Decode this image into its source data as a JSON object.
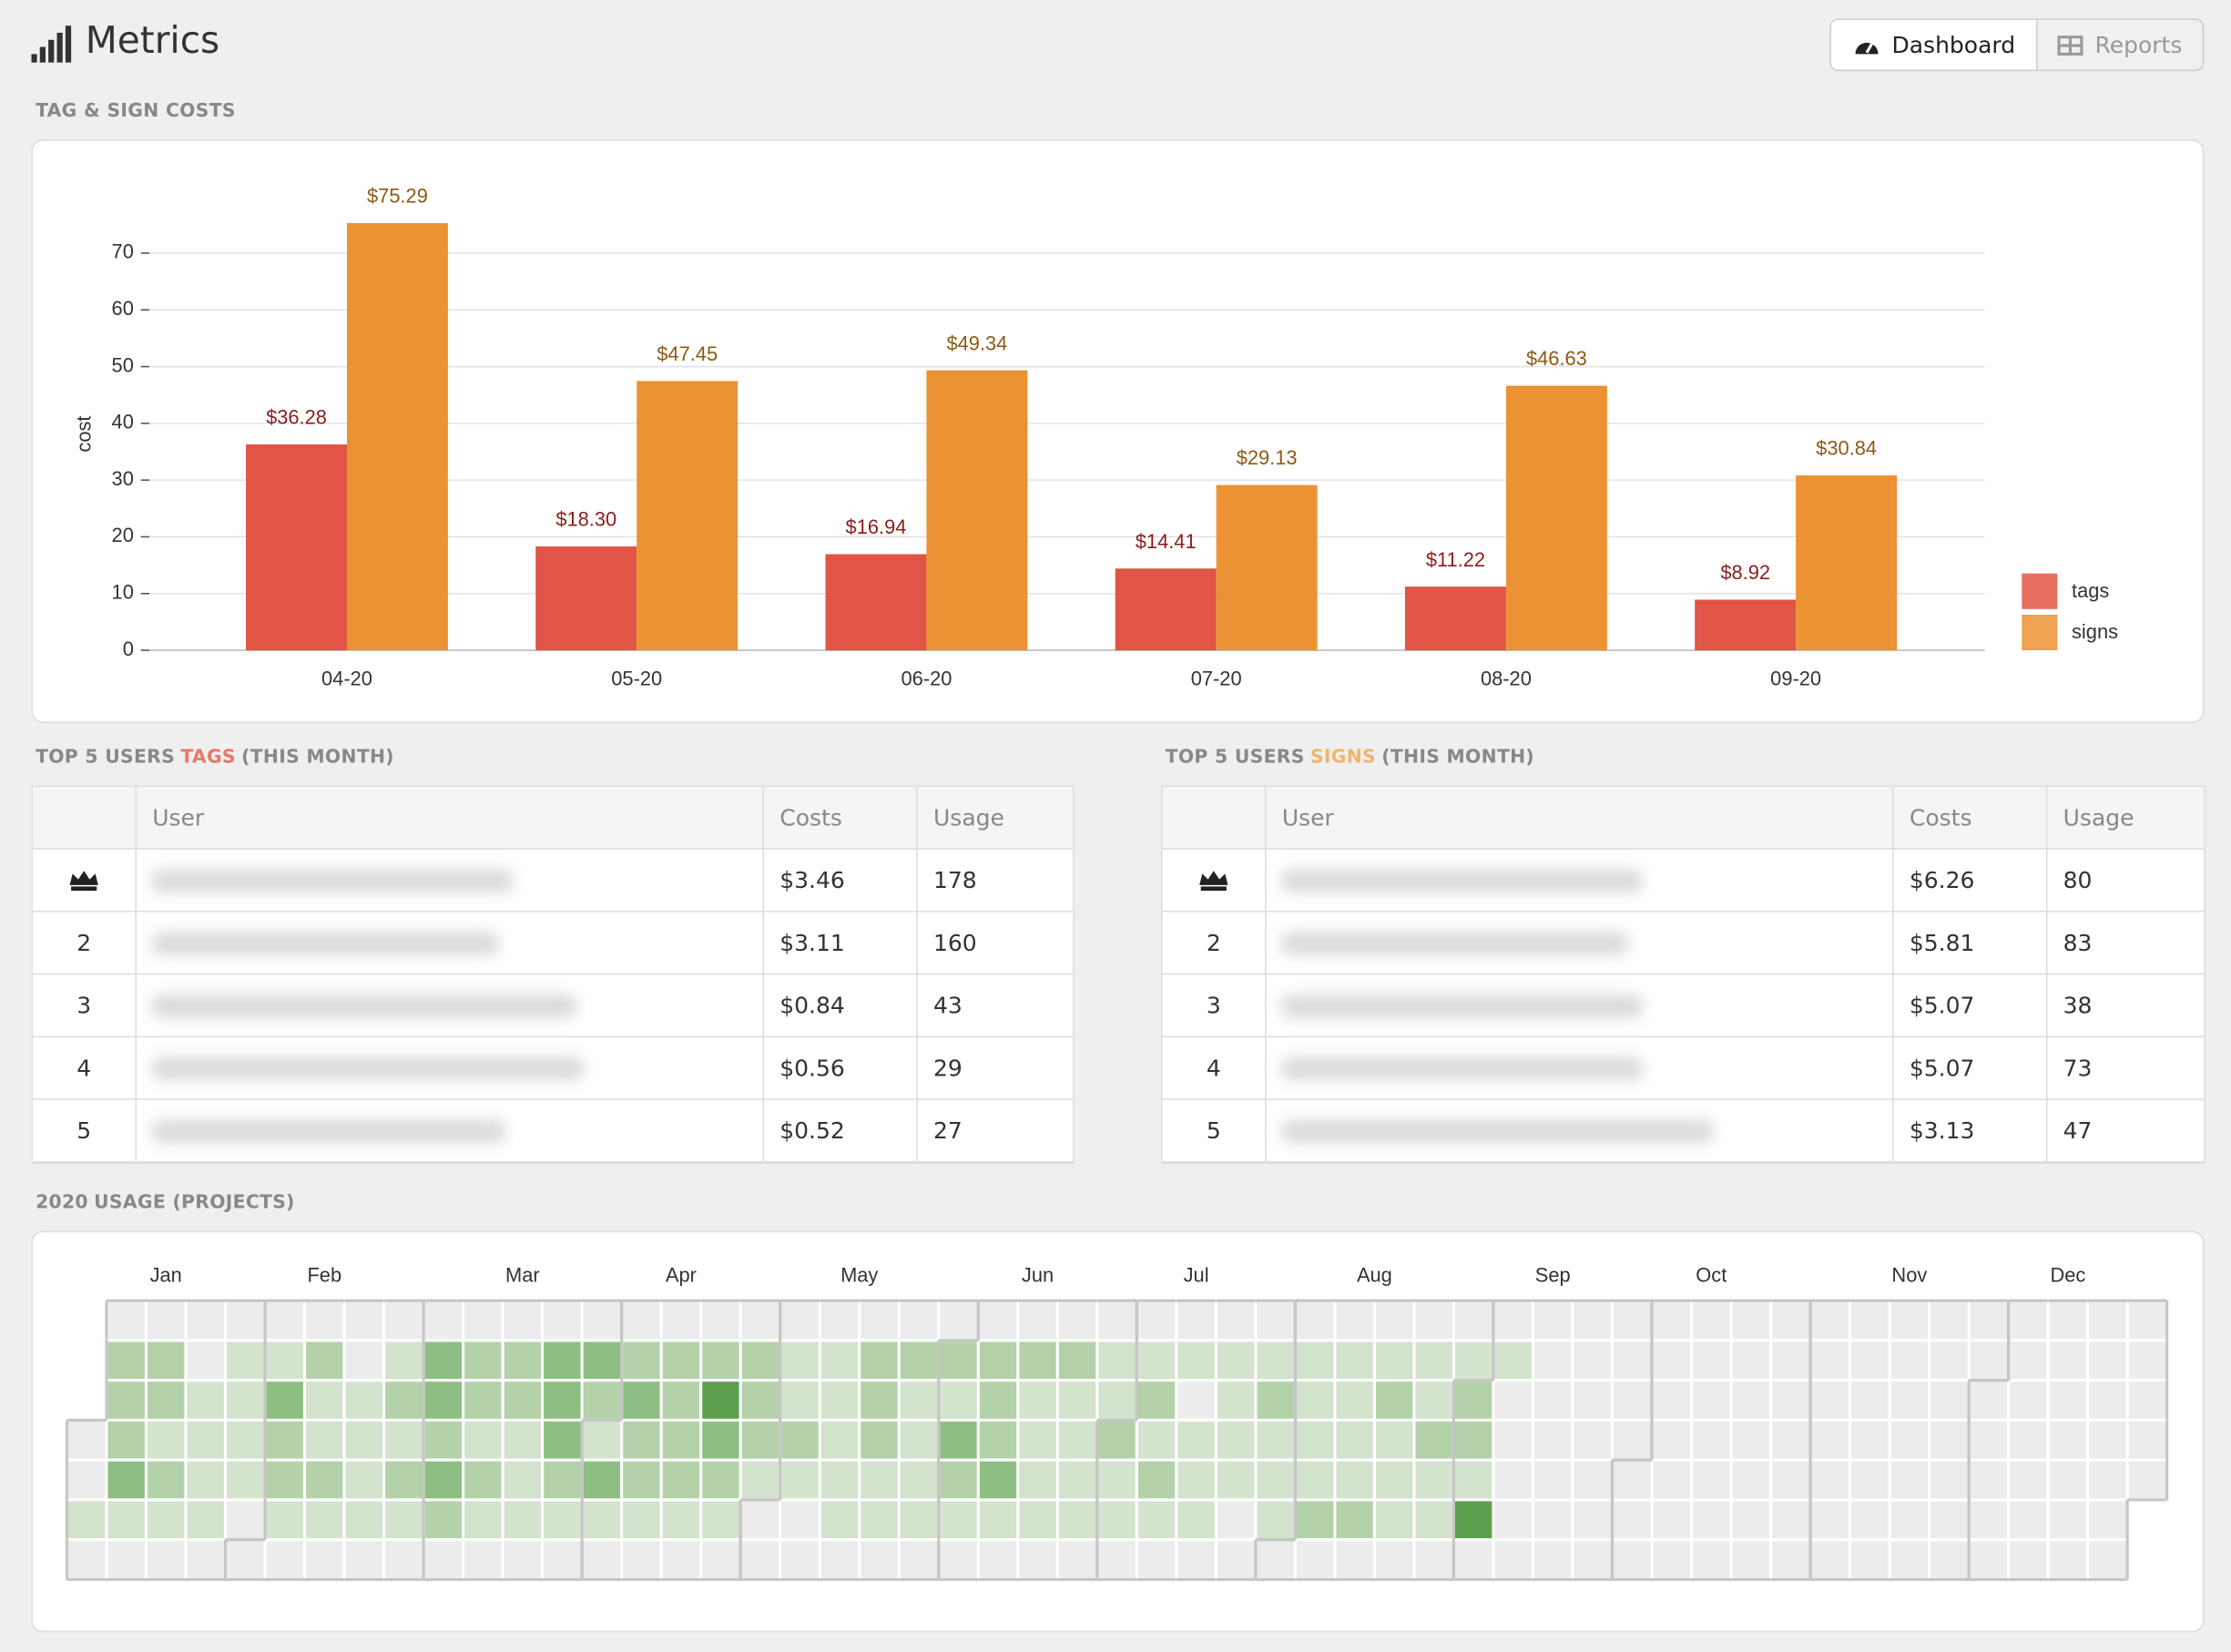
{
  "header": {
    "title": "Metrics",
    "tabs": [
      "Dashboard",
      "Reports"
    ]
  },
  "chart_section": {
    "title": "TAG & SIGN COSTS"
  },
  "chart_data": {
    "type": "bar",
    "categories": [
      "04-20",
      "05-20",
      "06-20",
      "07-20",
      "08-20",
      "09-20"
    ],
    "series": [
      {
        "name": "tags",
        "color": "#e05545",
        "label_color": "#8b1c1c",
        "values": [
          36.28,
          18.3,
          16.94,
          14.41,
          11.22,
          8.92
        ],
        "value_labels": [
          "$36.28",
          "$18.30",
          "$16.94",
          "$14.41",
          "$11.22",
          "$8.92"
        ]
      },
      {
        "name": "signs",
        "color": "#eb9234",
        "label_color": "#8a5a14",
        "values": [
          75.29,
          47.45,
          49.34,
          29.13,
          46.63,
          30.84
        ],
        "value_labels": [
          "$75.29",
          "$47.45",
          "$49.34",
          "$29.13",
          "$46.63",
          "$30.84"
        ]
      }
    ],
    "ylim": [
      0,
      80
    ],
    "yticks": [
      0,
      10,
      20,
      30,
      40,
      50,
      60,
      70
    ],
    "ylabel": "cost",
    "grid": true,
    "legend": "right"
  },
  "tables": [
    {
      "title": {
        "before": "TOP 5 USERS",
        "highlight": "TAGS",
        "after": "(THIS MONTH)"
      },
      "accent": "#e8776a",
      "columns": [
        "User",
        "Costs",
        "Usage"
      ],
      "rows": [
        {
          "rank": null,
          "cost": "$3.46",
          "usage": 178
        },
        {
          "rank": 2,
          "cost": "$3.11",
          "usage": 160
        },
        {
          "rank": 3,
          "cost": "$0.84",
          "usage": 43
        },
        {
          "rank": 4,
          "cost": "$0.56",
          "usage": 29
        },
        {
          "rank": 5,
          "cost": "$0.52",
          "usage": 27
        }
      ]
    },
    {
      "title": {
        "before": "TOP 5 USERS",
        "highlight": "SIGNS",
        "after": "(THIS MONTH)"
      },
      "accent": "#f0b56d",
      "columns": [
        "User",
        "Costs",
        "Usage"
      ],
      "rows": [
        {
          "rank": null,
          "cost": "$6.26",
          "usage": 80
        },
        {
          "rank": 2,
          "cost": "$5.81",
          "usage": 83
        },
        {
          "rank": 3,
          "cost": "$5.07",
          "usage": 38
        },
        {
          "rank": 4,
          "cost": "$5.07",
          "usage": 73
        },
        {
          "rank": 5,
          "cost": "$3.13",
          "usage": 47
        }
      ]
    }
  ],
  "heatmap": {
    "title_year": 2020,
    "title_rest": "USAGE (PROJECTS)",
    "months": [
      "Jan",
      "Feb",
      "Mar",
      "Apr",
      "May",
      "Jun",
      "Jul",
      "Aug",
      "Sep",
      "Oct",
      "Nov",
      "Dec"
    ],
    "colors": [
      "#ececec",
      "#d3e3cd",
      "#b4d2aa",
      "#8dbf82",
      "#5ca04e"
    ],
    "weeks": [
      [
        null,
        null,
        null,
        0,
        0,
        1,
        0
      ],
      [
        0,
        2,
        2,
        2,
        3,
        1,
        0
      ],
      [
        0,
        2,
        2,
        1,
        2,
        1,
        0
      ],
      [
        0,
        0,
        1,
        1,
        1,
        1,
        0
      ],
      [
        0,
        1,
        1,
        1,
        1,
        0,
        0
      ],
      [
        0,
        1,
        3,
        2,
        2,
        1,
        0
      ],
      [
        0,
        2,
        1,
        1,
        2,
        1,
        0
      ],
      [
        0,
        0,
        1,
        1,
        1,
        1,
        0
      ],
      [
        0,
        1,
        2,
        1,
        2,
        1,
        0
      ],
      [
        0,
        3,
        3,
        2,
        3,
        2,
        0
      ],
      [
        0,
        2,
        2,
        1,
        2,
        1,
        0
      ],
      [
        0,
        2,
        2,
        1,
        1,
        1,
        0
      ],
      [
        0,
        3,
        3,
        3,
        2,
        1,
        0
      ],
      [
        0,
        3,
        2,
        1,
        3,
        1,
        0
      ],
      [
        0,
        2,
        3,
        2,
        2,
        1,
        0
      ],
      [
        0,
        2,
        2,
        2,
        2,
        1,
        0
      ],
      [
        0,
        2,
        4,
        3,
        2,
        1,
        0
      ],
      [
        0,
        2,
        2,
        2,
        1,
        0,
        0
      ],
      [
        0,
        1,
        1,
        2,
        1,
        0,
        0
      ],
      [
        0,
        1,
        1,
        1,
        1,
        1,
        0
      ],
      [
        0,
        2,
        2,
        2,
        1,
        1,
        0
      ],
      [
        0,
        2,
        1,
        1,
        1,
        1,
        0
      ],
      [
        0,
        2,
        1,
        3,
        2,
        1,
        0
      ],
      [
        0,
        2,
        2,
        2,
        3,
        1,
        0
      ],
      [
        0,
        2,
        1,
        1,
        1,
        1,
        0
      ],
      [
        0,
        2,
        1,
        1,
        1,
        1,
        0
      ],
      [
        0,
        1,
        1,
        2,
        1,
        1,
        0
      ],
      [
        0,
        1,
        2,
        1,
        2,
        1,
        0
      ],
      [
        0,
        1,
        0,
        1,
        1,
        1,
        0
      ],
      [
        0,
        1,
        1,
        1,
        1,
        0,
        0
      ],
      [
        0,
        1,
        2,
        1,
        1,
        1,
        0
      ],
      [
        0,
        1,
        1,
        1,
        1,
        2,
        0
      ],
      [
        0,
        1,
        1,
        1,
        1,
        2,
        0
      ],
      [
        0,
        1,
        2,
        1,
        1,
        1,
        0
      ],
      [
        0,
        1,
        1,
        2,
        1,
        1,
        0
      ],
      [
        0,
        1,
        2,
        2,
        1,
        4,
        0
      ],
      [
        0,
        1,
        0,
        0,
        0,
        0,
        0
      ],
      [
        0,
        0,
        0,
        0,
        0,
        0,
        0
      ],
      [
        0,
        0,
        0,
        0,
        0,
        0,
        0
      ],
      [
        0,
        0,
        0,
        0,
        0,
        0,
        0
      ],
      [
        0,
        0,
        0,
        0,
        0,
        0,
        0
      ],
      [
        0,
        0,
        0,
        0,
        0,
        0,
        0
      ],
      [
        0,
        0,
        0,
        0,
        0,
        0,
        0
      ],
      [
        0,
        0,
        0,
        0,
        0,
        0,
        0
      ],
      [
        0,
        0,
        0,
        0,
        0,
        0,
        0
      ],
      [
        0,
        0,
        0,
        0,
        0,
        0,
        0
      ],
      [
        0,
        0,
        0,
        0,
        0,
        0,
        0
      ],
      [
        0,
        0,
        0,
        0,
        0,
        0,
        0
      ],
      [
        0,
        0,
        0,
        0,
        0,
        0,
        0
      ],
      [
        0,
        0,
        0,
        0,
        0,
        0,
        0
      ],
      [
        0,
        0,
        0,
        0,
        0,
        0,
        0
      ],
      [
        0,
        0,
        0,
        0,
        0,
        0,
        0
      ],
      [
        0,
        0,
        0,
        0,
        0,
        null,
        null
      ]
    ]
  }
}
